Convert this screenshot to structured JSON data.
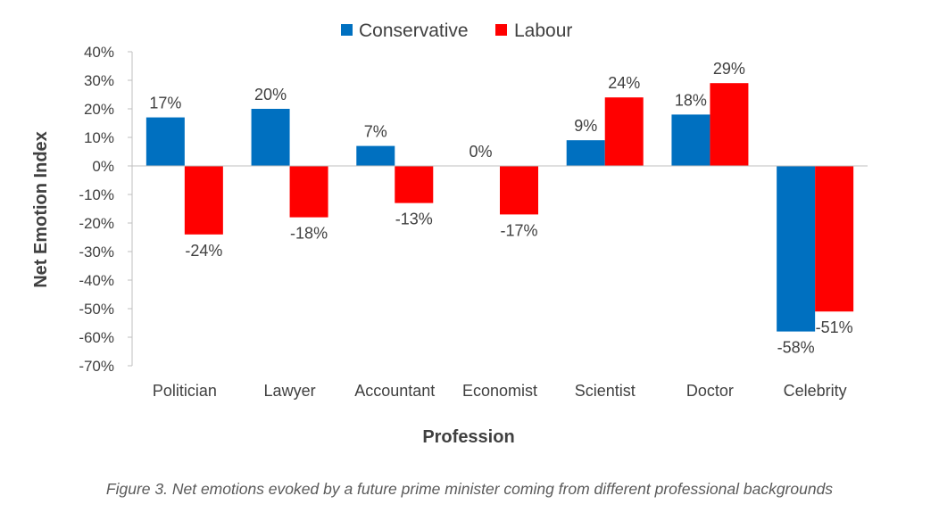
{
  "chart_data": {
    "type": "bar",
    "categories": [
      "Politician",
      "Lawyer",
      "Accountant",
      "Economist",
      "Scientist",
      "Doctor",
      "Celebrity"
    ],
    "series": [
      {
        "name": "Conservative",
        "color": "#0070C0",
        "values": [
          17,
          20,
          7,
          0,
          9,
          18,
          -58
        ],
        "labels": [
          "17%",
          "20%",
          "7%",
          "0%",
          "9%",
          "18%",
          "-58%"
        ]
      },
      {
        "name": "Labour",
        "color": "#FF0000",
        "values": [
          -24,
          -18,
          -13,
          -17,
          24,
          29,
          -51
        ],
        "labels": [
          "-24%",
          "-18%",
          "-13%",
          "-17%",
          "24%",
          "29%",
          "-51%"
        ]
      }
    ],
    "xlabel": "Profession",
    "ylabel": "Net Emotion Index",
    "ylim": [
      -70,
      40
    ],
    "yticks": [
      40,
      30,
      20,
      10,
      0,
      -10,
      -20,
      -30,
      -40,
      -50,
      -60,
      -70
    ],
    "ytick_labels": [
      "40%",
      "30%",
      "20%",
      "10%",
      "0%",
      "-10%",
      "-20%",
      "-30%",
      "-40%",
      "-50%",
      "-60%",
      "-70%"
    ],
    "legend_position": "top-center",
    "grid": false
  },
  "caption": "Figure 3. Net emotions evoked by a future prime minister coming from different professional backgrounds"
}
